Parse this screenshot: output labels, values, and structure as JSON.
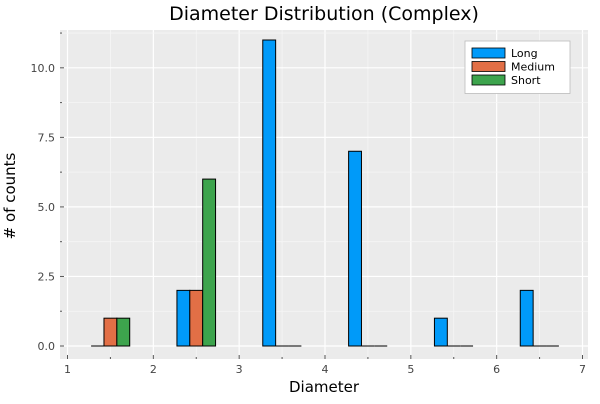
{
  "chart_data": {
    "type": "bar",
    "title": "Diameter  Distribution (Complex)",
    "xlabel": "Diameter",
    "ylabel": "# of counts",
    "xlim": [
      1,
      7
    ],
    "ylim": [
      0,
      11.3
    ],
    "xticks": [
      "1",
      "2",
      "3",
      "4",
      "5",
      "6",
      "7"
    ],
    "yticks": [
      "0.0",
      "2.5",
      "5.0",
      "7.5",
      "10.0"
    ],
    "grid": true,
    "legend_position": "top-right",
    "series": [
      {
        "name": "Long",
        "color": "#009af9",
        "x": [
          1.35,
          2.35,
          3.35,
          4.35,
          5.35,
          6.35
        ],
        "values": [
          0,
          2,
          11,
          7,
          1,
          2
        ]
      },
      {
        "name": "Medium",
        "color": "#e26f46",
        "x": [
          1.5,
          2.5,
          3.5,
          4.5,
          5.5,
          6.5
        ],
        "values": [
          1,
          2,
          0,
          0,
          0,
          0
        ]
      },
      {
        "name": "Short",
        "color": "#3da44d",
        "x": [
          1.65,
          2.65,
          3.65,
          4.65,
          5.65,
          6.65
        ],
        "values": [
          1,
          6,
          0,
          0,
          0,
          0
        ]
      }
    ]
  }
}
